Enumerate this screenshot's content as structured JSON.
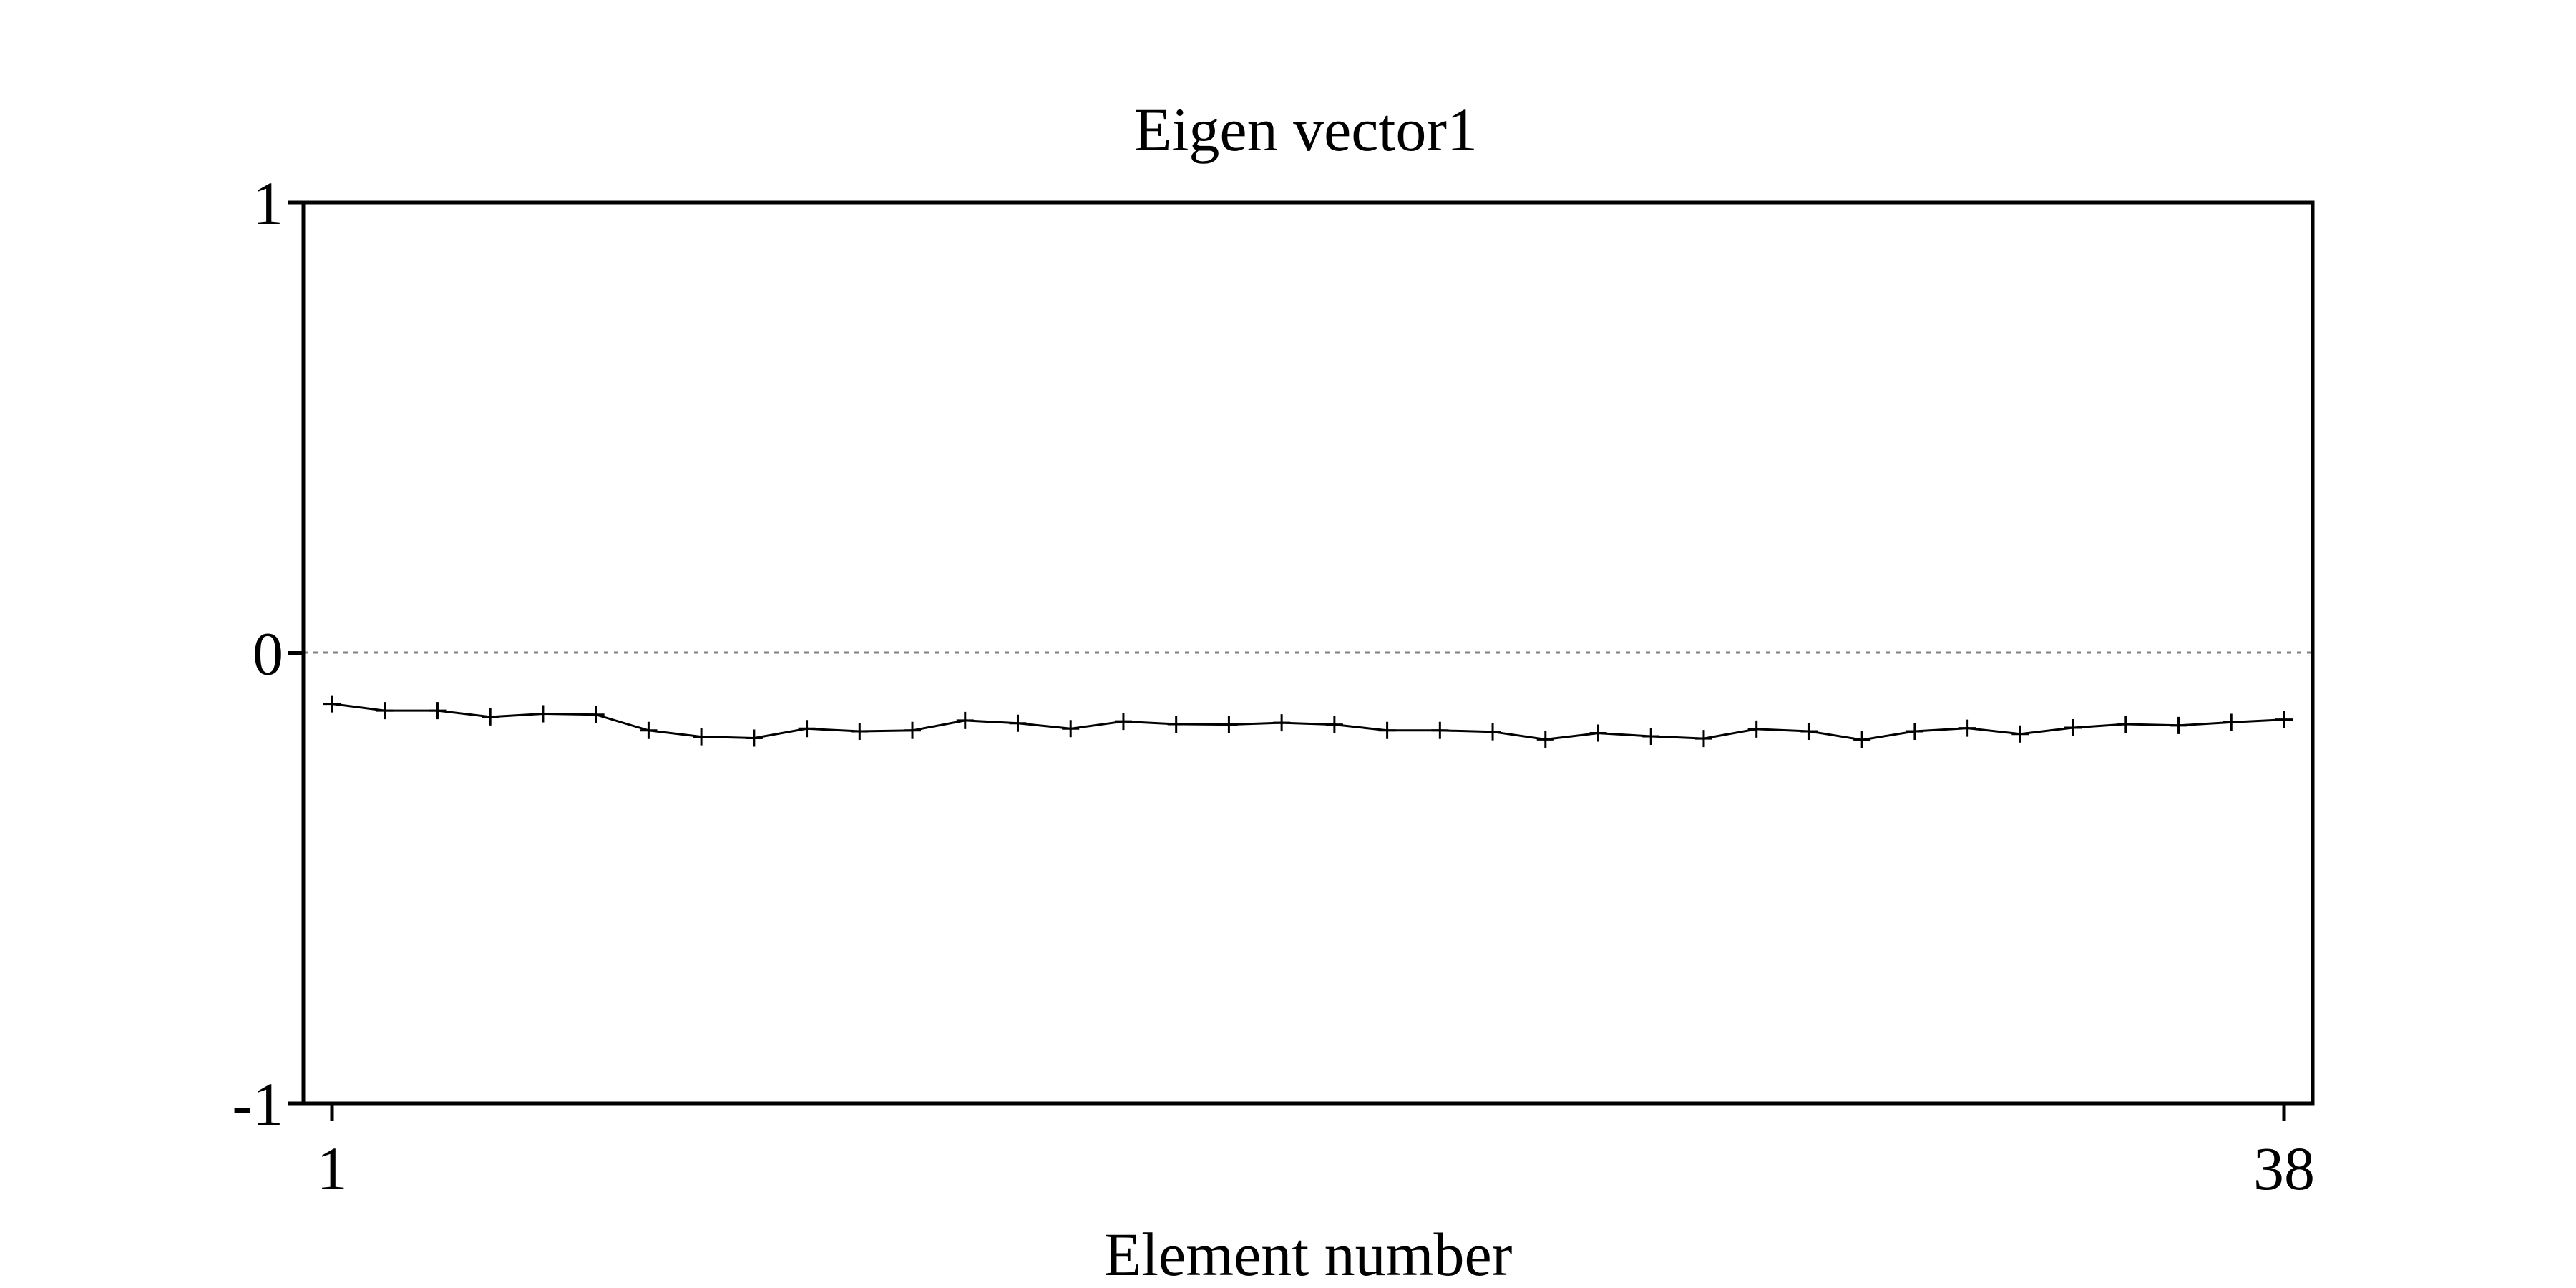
{
  "chart_data": {
    "type": "line",
    "title": "Eigen vector1",
    "xlabel": "Element number",
    "ylabel": "",
    "ylim": [
      -1,
      1
    ],
    "xlim": [
      1,
      38
    ],
    "x_ticks": [
      "1",
      "38"
    ],
    "y_ticks": [
      "1",
      "0",
      "-1"
    ],
    "zero_line": true,
    "grid": false,
    "marker": "plus",
    "colors": {
      "line": "#000000",
      "zero_line": "#808080"
    },
    "series": [
      {
        "x": [
          1,
          2,
          3,
          4,
          5,
          6,
          7,
          8,
          9,
          10,
          11,
          12,
          13,
          14,
          15,
          16,
          17,
          18,
          19,
          20,
          21,
          22,
          23,
          24,
          25,
          26,
          27,
          28,
          29,
          30,
          31,
          32,
          33,
          34,
          35,
          36,
          37,
          38
        ],
        "values": [
          -0.113,
          -0.128,
          -0.128,
          -0.142,
          -0.135,
          -0.137,
          -0.172,
          -0.186,
          -0.189,
          -0.168,
          -0.174,
          -0.172,
          -0.15,
          -0.156,
          -0.168,
          -0.152,
          -0.158,
          -0.159,
          -0.155,
          -0.159,
          -0.172,
          -0.172,
          -0.175,
          -0.192,
          -0.178,
          -0.185,
          -0.19,
          -0.169,
          -0.174,
          -0.193,
          -0.174,
          -0.167,
          -0.18,
          -0.166,
          -0.158,
          -0.161,
          -0.154,
          -0.148
        ]
      }
    ]
  }
}
